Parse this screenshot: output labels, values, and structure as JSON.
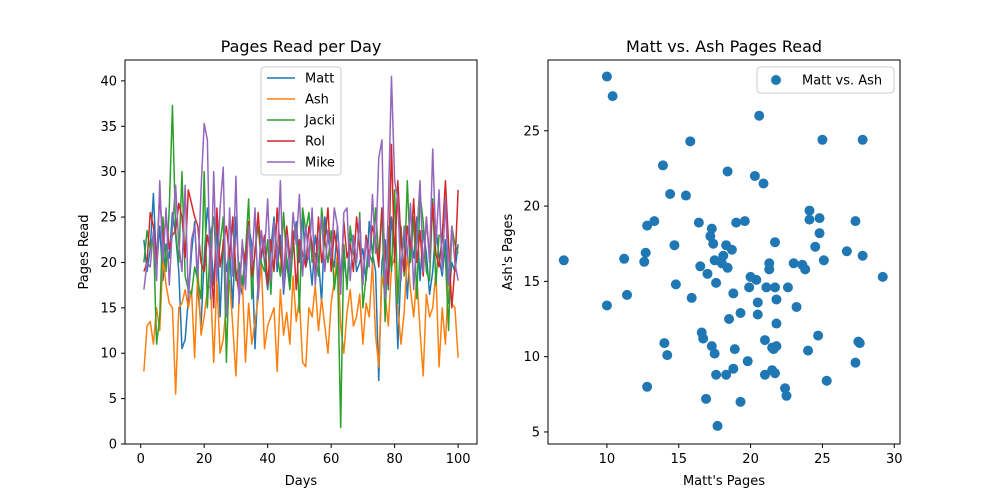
{
  "chart_data": [
    {
      "type": "line",
      "title": "Pages Read per Day",
      "xlabel": "Days",
      "ylabel": "Pages Read",
      "xlim": [
        -4.95,
        105.95
      ],
      "ylim": [
        0,
        42.3
      ],
      "xticks": [
        0,
        20,
        40,
        60,
        80,
        100
      ],
      "yticks": [
        0,
        5,
        10,
        15,
        20,
        25,
        30,
        35,
        40
      ],
      "legend": "upper center",
      "x": [
        1,
        2,
        3,
        4,
        5,
        6,
        7,
        8,
        9,
        10,
        11,
        12,
        13,
        14,
        15,
        16,
        17,
        18,
        19,
        20,
        21,
        22,
        23,
        24,
        25,
        26,
        27,
        28,
        29,
        30,
        31,
        32,
        33,
        34,
        35,
        36,
        37,
        38,
        39,
        40,
        41,
        42,
        43,
        44,
        45,
        46,
        47,
        48,
        49,
        50,
        51,
        52,
        53,
        54,
        55,
        56,
        57,
        58,
        59,
        60,
        61,
        62,
        63,
        64,
        65,
        66,
        67,
        68,
        69,
        70,
        71,
        72,
        73,
        74,
        75,
        76,
        77,
        78,
        79,
        80,
        81,
        82,
        83,
        84,
        85,
        86,
        87,
        88,
        89,
        90,
        91,
        92,
        93,
        94,
        95,
        96,
        97,
        98,
        99,
        100
      ],
      "series": [
        {
          "name": "Matt",
          "color": "#1f77b4",
          "values": [
            22.5,
            19.0,
            21.5,
            27.6,
            19.5,
            24.0,
            18.0,
            22.0,
            20.5,
            25.5,
            23.0,
            19.0,
            10.5,
            11.5,
            16.0,
            21.0,
            24.5,
            17.0,
            13.0,
            20.5,
            26.0,
            23.0,
            17.5,
            24.0,
            14.0,
            22.5,
            19.0,
            21.5,
            15.0,
            25.0,
            18.5,
            16.5,
            20.0,
            24.0,
            22.0,
            10.5,
            18.0,
            23.5,
            20.0,
            17.0,
            21.5,
            25.0,
            19.0,
            23.0,
            16.5,
            20.5,
            18.0,
            22.0,
            24.5,
            20.0,
            25.5,
            19.5,
            21.0,
            17.5,
            23.0,
            20.5,
            15.5,
            25.0,
            22.5,
            21.0,
            19.5,
            24.0,
            18.5,
            20.5,
            17.5,
            22.5,
            23.0,
            19.0,
            20.0,
            21.5,
            18.0,
            24.5,
            21.0,
            19.0,
            7.0,
            20.0,
            22.5,
            17.0,
            25.0,
            21.0,
            10.5,
            19.5,
            23.0,
            16.0,
            22.5,
            20.5,
            25.0,
            18.0,
            23.5,
            21.0,
            16.5,
            19.0,
            24.0,
            20.5,
            18.5,
            22.5,
            15.5,
            20.0,
            19.0,
            22.0
          ]
        },
        {
          "name": "Ash",
          "color": "#ff7f0e",
          "values": [
            8.0,
            13.0,
            13.5,
            11.0,
            15.0,
            12.5,
            20.5,
            17.5,
            15.5,
            15.0,
            5.5,
            15.0,
            15.5,
            17.0,
            15.0,
            17.0,
            9.5,
            19.5,
            12.0,
            14.0,
            17.0,
            17.5,
            9.0,
            18.0,
            10.0,
            11.5,
            15.5,
            18.0,
            13.0,
            7.5,
            16.0,
            18.5,
            9.0,
            15.5,
            11.0,
            13.5,
            16.0,
            20.0,
            10.5,
            13.0,
            14.0,
            15.0,
            8.0,
            17.0,
            12.0,
            14.5,
            11.0,
            18.5,
            13.5,
            16.0,
            9.0,
            8.5,
            15.0,
            14.0,
            17.5,
            12.5,
            16.0,
            13.0,
            10.0,
            15.5,
            18.0,
            21.0,
            13.0,
            10.0,
            14.5,
            17.0,
            13.0,
            14.0,
            16.5,
            11.0,
            15.5,
            14.0,
            20.0,
            12.0,
            8.5,
            18.5,
            16.5,
            13.0,
            19.5,
            20.5,
            15.0,
            11.0,
            14.5,
            21.0,
            17.0,
            14.0,
            18.5,
            12.5,
            7.5,
            16.5,
            14.0,
            15.0,
            19.0,
            8.5,
            15.0,
            11.0,
            18.5,
            15.5,
            15.0,
            9.5
          ]
        },
        {
          "name": "Jacki",
          "color": "#2ca02c",
          "values": [
            20.0,
            23.5,
            21.5,
            23.0,
            11.0,
            14.0,
            25.0,
            19.0,
            26.0,
            37.3,
            23.5,
            20.0,
            30.0,
            18.5,
            17.0,
            16.5,
            19.5,
            18.0,
            16.0,
            30.0,
            15.0,
            23.0,
            25.0,
            19.0,
            22.0,
            25.0,
            9.0,
            21.0,
            24.5,
            18.0,
            20.0,
            17.5,
            21.0,
            27.0,
            16.0,
            21.5,
            24.0,
            20.0,
            19.0,
            22.5,
            16.5,
            24.5,
            21.0,
            18.5,
            25.5,
            20.0,
            17.0,
            22.0,
            24.0,
            14.5,
            26.0,
            23.5,
            25.5,
            20.0,
            21.0,
            18.5,
            26.0,
            22.5,
            20.0,
            23.5,
            17.0,
            20.0,
            1.8,
            22.0,
            17.0,
            24.0,
            21.0,
            20.0,
            25.5,
            15.0,
            18.5,
            21.0,
            20.0,
            26.0,
            20.5,
            26.0,
            13.5,
            24.0,
            19.0,
            28.0,
            15.5,
            24.0,
            18.5,
            29.0,
            20.0,
            25.0,
            16.0,
            27.5,
            24.5,
            19.0,
            18.0,
            27.0,
            17.5,
            23.0,
            23.0,
            20.5,
            12.5,
            24.0,
            22.0,
            21.0
          ]
        },
        {
          "name": "Rol",
          "color": "#d62728",
          "values": [
            19.0,
            20.0,
            25.5,
            24.0,
            20.0,
            27.5,
            22.0,
            25.0,
            21.5,
            23.0,
            23.5,
            26.5,
            25.0,
            20.5,
            28.0,
            26.5,
            25.0,
            24.0,
            20.0,
            19.0,
            23.0,
            21.0,
            15.0,
            26.0,
            19.5,
            22.0,
            24.0,
            20.5,
            25.0,
            19.0,
            16.5,
            22.0,
            20.0,
            24.5,
            18.5,
            21.0,
            25.5,
            20.5,
            23.0,
            17.5,
            22.5,
            19.0,
            26.0,
            21.0,
            18.0,
            24.0,
            20.5,
            23.5,
            17.0,
            22.5,
            21.0,
            19.5,
            24.0,
            22.0,
            18.5,
            25.0,
            20.0,
            22.5,
            26.0,
            19.0,
            23.5,
            21.0,
            17.5,
            24.5,
            20.5,
            22.0,
            19.0,
            25.0,
            21.5,
            18.0,
            23.0,
            20.5,
            24.0,
            22.5,
            19.5,
            26.0,
            21.0,
            17.5,
            33.0,
            20.0,
            29.0,
            22.5,
            19.0,
            24.0,
            21.5,
            27.0,
            20.0,
            23.5,
            18.5,
            25.0,
            20.5,
            26.5,
            21.0,
            19.5,
            23.0,
            29.0,
            22.0,
            15.0,
            19.5,
            28.0
          ]
        },
        {
          "name": "Mike",
          "color": "#9467bd",
          "values": [
            17.0,
            20.0,
            19.5,
            23.5,
            18.0,
            29.0,
            20.0,
            26.0,
            17.5,
            24.0,
            28.5,
            22.0,
            19.0,
            28.5,
            16.0,
            22.5,
            24.0,
            18.5,
            28.0,
            35.3,
            33.5,
            16.0,
            30.0,
            18.0,
            26.0,
            30.5,
            14.0,
            26.0,
            18.5,
            29.5,
            15.5,
            22.5,
            17.0,
            24.0,
            19.5,
            26.0,
            16.0,
            23.5,
            21.0,
            27.0,
            18.0,
            24.5,
            20.0,
            29.0,
            17.0,
            23.0,
            19.0,
            25.5,
            22.0,
            27.5,
            18.5,
            24.0,
            20.5,
            26.0,
            17.5,
            22.0,
            25.0,
            19.0,
            23.5,
            20.5,
            26.0,
            24.0,
            16.5,
            25.5,
            26.0,
            18.0,
            23.0,
            20.0,
            25.0,
            17.5,
            22.5,
            19.5,
            27.5,
            21.0,
            31.5,
            33.5,
            16.0,
            26.0,
            40.5,
            29.0,
            27.0,
            18.0,
            24.0,
            20.5,
            26.5,
            17.0,
            23.0,
            29.0,
            19.0,
            25.0,
            20.0,
            32.5,
            22.0,
            28.0,
            19.0,
            27.0,
            17.5,
            24.0,
            20.0,
            18.0
          ]
        }
      ]
    },
    {
      "type": "scatter",
      "title": "Matt vs. Ash Pages Read",
      "xlabel": "Matt's Pages",
      "ylabel": "Ash's Pages",
      "xlim": [
        5.9,
        30.4
      ],
      "ylim": [
        4.2,
        29.7
      ],
      "xticks": [
        10,
        15,
        20,
        25,
        30
      ],
      "yticks": [
        5,
        10,
        15,
        20,
        25
      ],
      "legend": "upper right",
      "series": [
        {
          "name": "Matt vs. Ash",
          "color": "#1f77b4",
          "points": [
            [
              7.0,
              16.4
            ],
            [
              10.0,
              13.4
            ],
            [
              10.0,
              28.6
            ],
            [
              10.4,
              27.3
            ],
            [
              11.2,
              16.5
            ],
            [
              11.4,
              14.1
            ],
            [
              12.6,
              16.3
            ],
            [
              12.7,
              16.9
            ],
            [
              12.8,
              18.7
            ],
            [
              12.8,
              8.0
            ],
            [
              13.3,
              19.0
            ],
            [
              13.9,
              22.7
            ],
            [
              14.0,
              10.9
            ],
            [
              14.2,
              10.1
            ],
            [
              14.4,
              20.8
            ],
            [
              14.7,
              17.4
            ],
            [
              14.8,
              14.8
            ],
            [
              15.5,
              20.7
            ],
            [
              15.8,
              24.3
            ],
            [
              15.9,
              13.9
            ],
            [
              16.4,
              18.9
            ],
            [
              16.5,
              16.0
            ],
            [
              16.6,
              11.6
            ],
            [
              16.7,
              11.2
            ],
            [
              16.9,
              7.2
            ],
            [
              17.0,
              15.5
            ],
            [
              17.2,
              18.0
            ],
            [
              17.3,
              10.7
            ],
            [
              17.3,
              18.5
            ],
            [
              17.4,
              17.5
            ],
            [
              17.5,
              10.2
            ],
            [
              17.5,
              16.4
            ],
            [
              17.6,
              14.9
            ],
            [
              17.6,
              8.8
            ],
            [
              17.7,
              5.4
            ],
            [
              18.0,
              16.2
            ],
            [
              18.1,
              16.7
            ],
            [
              18.3,
              8.8
            ],
            [
              18.3,
              17.4
            ],
            [
              18.4,
              22.3
            ],
            [
              18.4,
              15.9
            ],
            [
              18.5,
              12.5
            ],
            [
              18.7,
              17.1
            ],
            [
              18.8,
              14.2
            ],
            [
              18.8,
              9.2
            ],
            [
              18.9,
              10.5
            ],
            [
              19.0,
              18.9
            ],
            [
              19.3,
              12.9
            ],
            [
              19.3,
              7.0
            ],
            [
              19.6,
              19.0
            ],
            [
              19.8,
              9.7
            ],
            [
              19.9,
              14.6
            ],
            [
              20.0,
              15.3
            ],
            [
              20.3,
              22.0
            ],
            [
              20.4,
              15.1
            ],
            [
              20.5,
              13.6
            ],
            [
              20.5,
              12.8
            ],
            [
              20.6,
              26.0
            ],
            [
              20.9,
              21.5
            ],
            [
              21.0,
              11.1
            ],
            [
              21.0,
              8.8
            ],
            [
              21.1,
              14.6
            ],
            [
              21.3,
              15.8
            ],
            [
              21.3,
              16.2
            ],
            [
              21.5,
              9.1
            ],
            [
              21.5,
              10.6
            ],
            [
              21.6,
              10.5
            ],
            [
              21.7,
              14.6
            ],
            [
              21.7,
              17.6
            ],
            [
              21.7,
              8.9
            ],
            [
              21.8,
              13.8
            ],
            [
              21.8,
              10.7
            ],
            [
              21.8,
              12.2
            ],
            [
              22.4,
              7.9
            ],
            [
              22.5,
              7.4
            ],
            [
              22.6,
              14.6
            ],
            [
              23.0,
              16.2
            ],
            [
              23.2,
              13.3
            ],
            [
              23.6,
              16.1
            ],
            [
              23.8,
              15.8
            ],
            [
              24.0,
              10.4
            ],
            [
              24.1,
              19.7
            ],
            [
              24.1,
              19.1
            ],
            [
              24.5,
              17.3
            ],
            [
              24.7,
              11.4
            ],
            [
              24.8,
              19.2
            ],
            [
              24.8,
              18.2
            ],
            [
              25.0,
              24.4
            ],
            [
              25.1,
              16.4
            ],
            [
              25.3,
              8.4
            ],
            [
              26.7,
              17.0
            ],
            [
              27.3,
              19.0
            ],
            [
              27.3,
              9.6
            ],
            [
              27.5,
              11.0
            ],
            [
              27.6,
              10.9
            ],
            [
              27.8,
              24.4
            ],
            [
              27.8,
              16.7
            ],
            [
              29.2,
              15.3
            ]
          ]
        }
      ]
    }
  ]
}
